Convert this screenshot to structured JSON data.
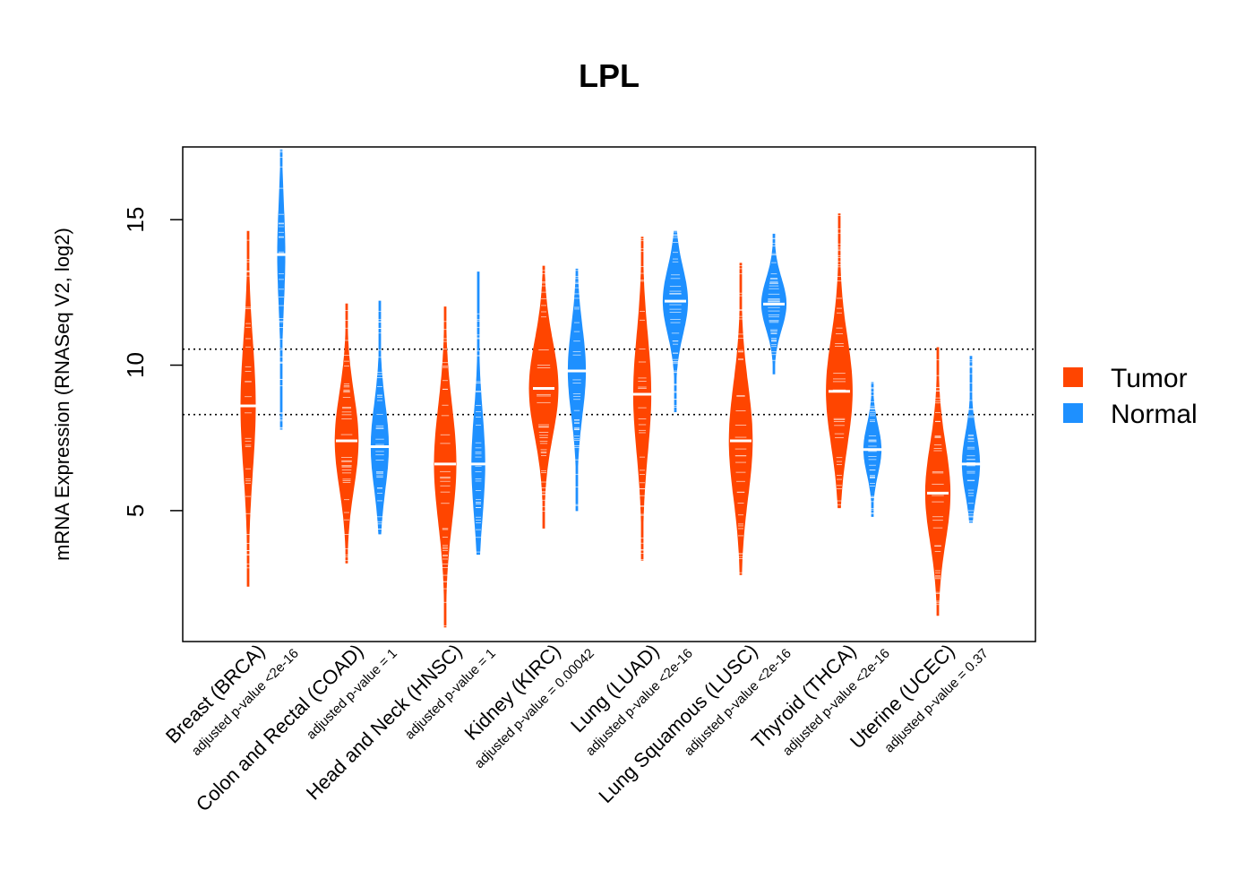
{
  "chart_data": {
    "type": "violin",
    "title": "LPL",
    "xlabel": "",
    "ylabel": "mRNA Expression (RNASeq V2, log2)",
    "ylim": [
      0.5,
      17.5
    ],
    "yticks": [
      5,
      10,
      15
    ],
    "hlines": [
      8.3,
      10.55
    ],
    "legend": {
      "position": "right",
      "entries": [
        {
          "name": "Tumor",
          "color": "#FF4500"
        },
        {
          "name": "Normal",
          "color": "#1E90FF"
        }
      ]
    },
    "categories": [
      {
        "label": "Breast (BRCA)",
        "pvalue": "adjusted p-value <2e-16",
        "tumor": {
          "median": 8.6,
          "min": 2.4,
          "max": 14.6,
          "width": 0.5
        },
        "normal": {
          "median": 13.8,
          "min": 7.8,
          "max": 17.4,
          "width": 0.25
        }
      },
      {
        "label": "Colon and Rectal (COAD)",
        "pvalue": "adjusted p-value = 1",
        "tumor": {
          "median": 7.4,
          "min": 3.2,
          "max": 12.1,
          "width": 0.8
        },
        "normal": {
          "median": 7.2,
          "min": 4.2,
          "max": 12.2,
          "width": 0.6
        }
      },
      {
        "label": "Head and Neck (HNSC)",
        "pvalue": "adjusted p-value = 1",
        "tumor": {
          "median": 6.6,
          "min": 1.0,
          "max": 12.0,
          "width": 0.75
        },
        "normal": {
          "median": 6.6,
          "min": 3.5,
          "max": 13.2,
          "width": 0.45
        }
      },
      {
        "label": "Kidney (KIRC)",
        "pvalue": "adjusted p-value = 0.00042",
        "tumor": {
          "median": 9.2,
          "min": 4.4,
          "max": 13.4,
          "width": 1.0
        },
        "normal": {
          "median": 9.8,
          "min": 5.0,
          "max": 13.3,
          "width": 0.6
        }
      },
      {
        "label": "Lung (LUAD)",
        "pvalue": "adjusted p-value <2e-16",
        "tumor": {
          "median": 9.0,
          "min": 3.3,
          "max": 14.4,
          "width": 0.6
        },
        "normal": {
          "median": 12.2,
          "min": 8.4,
          "max": 14.6,
          "width": 0.85
        }
      },
      {
        "label": "Lung Squamous (LUSC)",
        "pvalue": "adjusted p-value <2e-16",
        "tumor": {
          "median": 7.4,
          "min": 2.8,
          "max": 13.5,
          "width": 0.8
        },
        "normal": {
          "median": 12.1,
          "min": 9.7,
          "max": 14.5,
          "width": 0.85
        }
      },
      {
        "label": "Thyroid (THCA)",
        "pvalue": "adjusted p-value <2e-16",
        "tumor": {
          "median": 9.1,
          "min": 5.1,
          "max": 15.2,
          "width": 0.9
        },
        "normal": {
          "median": 7.1,
          "min": 4.8,
          "max": 9.4,
          "width": 0.6
        }
      },
      {
        "label": "Uterine (UCEC)",
        "pvalue": "adjusted p-value = 0.37",
        "tumor": {
          "median": 5.6,
          "min": 1.4,
          "max": 10.6,
          "width": 0.85
        },
        "normal": {
          "median": 6.6,
          "min": 4.6,
          "max": 10.3,
          "width": 0.6
        }
      }
    ]
  }
}
